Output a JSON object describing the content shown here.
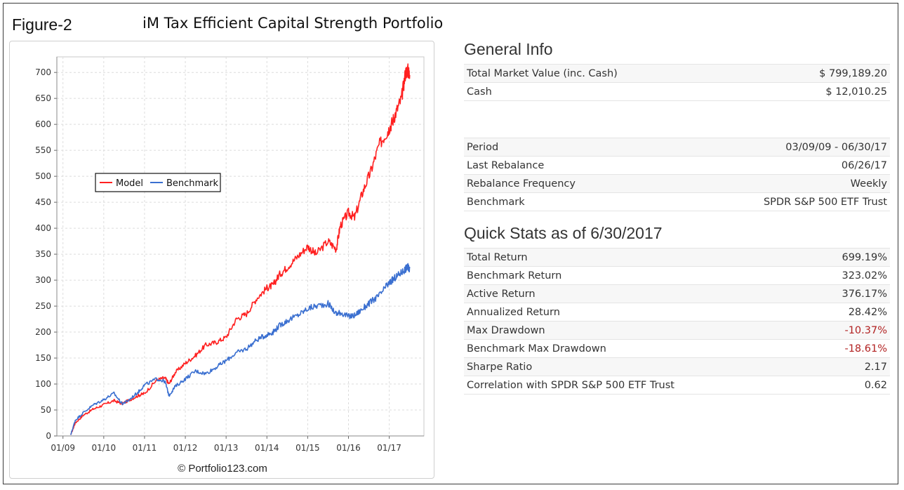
{
  "figure_label": "Figure-2",
  "title": "iM Tax Efficient Capital Strength Portfolio",
  "chart_credit": "© Portfolio123.com",
  "general_info": {
    "heading": "General Info",
    "rows1": [
      {
        "label": "Total Market Value (inc. Cash)",
        "value": "$ 799,189.20"
      },
      {
        "label": "Cash",
        "value": "$ 12,010.25"
      }
    ],
    "rows2": [
      {
        "label": "Period",
        "value": "03/09/09 - 06/30/17"
      },
      {
        "label": "Last Rebalance",
        "value": "06/26/17"
      },
      {
        "label": "Rebalance Frequency",
        "value": "Weekly"
      },
      {
        "label": "Benchmark",
        "value": "SPDR S&P 500 ETF Trust"
      }
    ]
  },
  "quick_stats": {
    "heading": "Quick Stats as of 6/30/2017",
    "rows": [
      {
        "label": "Total Return",
        "value": "699.19%"
      },
      {
        "label": "Benchmark Return",
        "value": "323.02%"
      },
      {
        "label": "Active Return",
        "value": "376.17%"
      },
      {
        "label": "Annualized Return",
        "value": "28.42%"
      },
      {
        "label": "Max Drawdown",
        "value": "-10.37%"
      },
      {
        "label": "Benchmark Max Drawdown",
        "value": "-18.61%"
      },
      {
        "label": "Sharpe Ratio",
        "value": "2.17"
      },
      {
        "label": "Correlation with SPDR S&P 500 ETF Trust",
        "value": "0.62"
      }
    ]
  },
  "chart_data": {
    "type": "line",
    "title": "",
    "xlabel": "",
    "ylabel": "",
    "ylim": [
      0,
      730
    ],
    "yticks": [
      0,
      50,
      100,
      150,
      200,
      250,
      300,
      350,
      400,
      450,
      500,
      550,
      600,
      650,
      700
    ],
    "xlim": [
      2008.85,
      2017.85
    ],
    "xticks": [
      {
        "label": "01/09",
        "x": 2009.0
      },
      {
        "label": "01/10",
        "x": 2010.0
      },
      {
        "label": "01/11",
        "x": 2011.0
      },
      {
        "label": "01/12",
        "x": 2012.0
      },
      {
        "label": "01/13",
        "x": 2013.0
      },
      {
        "label": "01/14",
        "x": 2014.0
      },
      {
        "label": "01/15",
        "x": 2015.0
      },
      {
        "label": "01/16",
        "x": 2016.0
      },
      {
        "label": "01/17",
        "x": 2017.0
      }
    ],
    "grid": true,
    "legend_position": "upper-left",
    "series": [
      {
        "name": "Model",
        "color": "#ff2020",
        "x": [
          2009.19,
          2009.3,
          2009.5,
          2009.75,
          2010.0,
          2010.25,
          2010.45,
          2010.6,
          2010.85,
          2011.0,
          2011.3,
          2011.5,
          2011.6,
          2011.75,
          2012.0,
          2012.25,
          2012.5,
          2012.75,
          2013.0,
          2013.25,
          2013.5,
          2013.75,
          2014.0,
          2014.15,
          2014.3,
          2014.5,
          2014.75,
          2015.0,
          2015.2,
          2015.5,
          2015.7,
          2015.8,
          2016.0,
          2016.15,
          2016.35,
          2016.55,
          2016.75,
          2016.95,
          2017.05,
          2017.15,
          2017.3,
          2017.4,
          2017.45,
          2017.5
        ],
        "y": [
          2,
          25,
          40,
          52,
          60,
          68,
          62,
          68,
          78,
          82,
          108,
          112,
          100,
          122,
          140,
          155,
          175,
          180,
          190,
          225,
          235,
          265,
          285,
          290,
          310,
          325,
          345,
          365,
          350,
          375,
          360,
          405,
          430,
          420,
          470,
          510,
          560,
          585,
          600,
          620,
          650,
          700,
          705,
          695
        ]
      },
      {
        "name": "Benchmark",
        "color": "#3a6fd0",
        "x": [
          2009.19,
          2009.3,
          2009.5,
          2009.75,
          2010.0,
          2010.25,
          2010.45,
          2010.6,
          2010.85,
          2011.0,
          2011.3,
          2011.5,
          2011.6,
          2011.75,
          2012.0,
          2012.25,
          2012.5,
          2012.75,
          2013.0,
          2013.25,
          2013.5,
          2013.75,
          2014.0,
          2014.15,
          2014.3,
          2014.5,
          2014.75,
          2015.0,
          2015.2,
          2015.5,
          2015.7,
          2015.8,
          2016.0,
          2016.15,
          2016.35,
          2016.55,
          2016.75,
          2016.95,
          2017.05,
          2017.15,
          2017.3,
          2017.4,
          2017.45,
          2017.5
        ],
        "y": [
          2,
          30,
          45,
          60,
          70,
          82,
          62,
          68,
          85,
          98,
          110,
          105,
          78,
          95,
          110,
          125,
          120,
          132,
          145,
          160,
          168,
          185,
          195,
          200,
          212,
          222,
          232,
          245,
          250,
          255,
          235,
          238,
          230,
          232,
          245,
          258,
          270,
          290,
          298,
          305,
          315,
          322,
          325,
          323
        ]
      }
    ]
  }
}
